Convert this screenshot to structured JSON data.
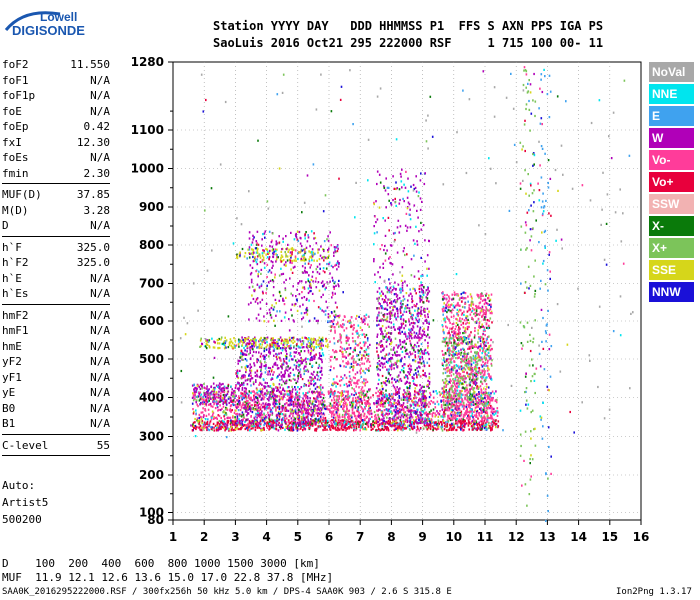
{
  "logo": {
    "line1": "Lowell",
    "line2": "DIGISONDE"
  },
  "header": {
    "line1": "Station YYYY DAY   DDD HHMMSS P1  FFS S AXN PPS IGA PS",
    "line2": "SaoLuis 2016 Oct21 295 222000 RSF     1 715 100 00- 11"
  },
  "params_groups": [
    [
      {
        "label": "foF2",
        "value": "11.550"
      },
      {
        "label": "foF1",
        "value": "N/A"
      },
      {
        "label": "foF1p",
        "value": "N/A"
      },
      {
        "label": "foE",
        "value": "N/A"
      },
      {
        "label": "foEp",
        "value": "0.42"
      },
      {
        "label": "fxI",
        "value": "12.30"
      },
      {
        "label": "foEs",
        "value": "N/A"
      },
      {
        "label": "fmin",
        "value": "2.30"
      }
    ],
    [
      {
        "label": "MUF(D)",
        "value": "37.85"
      },
      {
        "label": "M(D)",
        "value": "3.28"
      },
      {
        "label": "D",
        "value": "N/A"
      }
    ],
    [
      {
        "label": "h`F",
        "value": "325.0"
      },
      {
        "label": "h`F2",
        "value": "325.0"
      },
      {
        "label": "h`E",
        "value": "N/A"
      },
      {
        "label": "h`Es",
        "value": "N/A"
      }
    ],
    [
      {
        "label": "hmF2",
        "value": "N/A"
      },
      {
        "label": "hmF1",
        "value": "N/A"
      },
      {
        "label": "hmE",
        "value": "N/A"
      },
      {
        "label": "yF2",
        "value": "N/A"
      },
      {
        "label": "yF1",
        "value": "N/A"
      },
      {
        "label": "yE",
        "value": "N/A"
      },
      {
        "label": "B0",
        "value": "N/A"
      },
      {
        "label": "B1",
        "value": "N/A"
      }
    ],
    [
      {
        "label": "C-level",
        "value": "55"
      }
    ]
  ],
  "autoscaling": {
    "line1": "Auto:",
    "line2": "Artist5",
    "line3": "500200"
  },
  "legend": [
    {
      "label": "NoVal",
      "color": "#a8a8a8"
    },
    {
      "label": "NNE",
      "color": "#00e5ee"
    },
    {
      "label": "E",
      "color": "#3fa2ef"
    },
    {
      "label": "W",
      "color": "#b000b8"
    },
    {
      "label": "Vo-",
      "color": "#ff3c9a"
    },
    {
      "label": "Vo+",
      "color": "#e8003c"
    },
    {
      "label": "SSW",
      "color": "#f2b2b2"
    },
    {
      "label": "X-",
      "color": "#0a7a0a"
    },
    {
      "label": "X+",
      "color": "#7cc45a"
    },
    {
      "label": "SSE",
      "color": "#d6d61a"
    },
    {
      "label": "NNW",
      "color": "#1a10d8"
    }
  ],
  "footer": {
    "d_row": "D    100  200  400  600  800 1000 1500 3000 [km]",
    "muf_row": "MUF  11.9 12.1 12.6 13.6 15.0 17.0 22.8 37.8 [MHz]",
    "file_info": "SAA0K_2016295222000.RSF / 300fx256h 50 kHz 5.0 km / DPS-4 SAA0K 903 / 2.6 S 315.8 E",
    "version": "Ion2Png 1.3.17"
  },
  "chart_data": {
    "type": "scatter",
    "title": "",
    "xlabel": "",
    "ylabel": "",
    "x_ticks": [
      "1",
      "2",
      "3",
      "4",
      "5",
      "6",
      "7",
      "8",
      "9",
      "10",
      "11",
      "12",
      "13",
      "14",
      "15",
      "16"
    ],
    "y_ticks": [
      "80",
      "100",
      "200",
      "300",
      "400",
      "500",
      "600",
      "700",
      "800",
      "900",
      "1000",
      "1100",
      "1280"
    ],
    "xlim": [
      1,
      16
    ],
    "ylim": [
      80,
      1280
    ],
    "y_scale": "nonlinear (ionogram virtual height)",
    "grid": true,
    "legend_position": "right",
    "color_by": "legend",
    "regions": [
      {
        "name": "F-trace base",
        "x": [
          1.6,
          11.4
        ],
        "y": [
          318,
          345
        ],
        "color_index": 5,
        "density": 1.0
      },
      {
        "name": "F-trace upper",
        "x": [
          1.6,
          11.4
        ],
        "y": [
          345,
          420
        ],
        "color_index": 4,
        "density": 0.45
      },
      {
        "name": "W cluster 1",
        "x": [
          1.6,
          3.0
        ],
        "y": [
          385,
          440
        ],
        "color_index": 3,
        "density": 0.6
      },
      {
        "name": "spread F 3-5",
        "x": [
          3.0,
          5.8
        ],
        "y": [
          330,
          560
        ],
        "color_index": 3,
        "density": 0.4
      },
      {
        "name": "SSE band 540",
        "x": [
          1.8,
          6.0
        ],
        "y": [
          530,
          560
        ],
        "color_index": 9,
        "density": 0.45
      },
      {
        "name": "SSE band 780",
        "x": [
          3.0,
          6.0
        ],
        "y": [
          760,
          795
        ],
        "color_index": 9,
        "density": 0.4
      },
      {
        "name": "spread F 6-7",
        "x": [
          6.0,
          7.3
        ],
        "y": [
          330,
          620
        ],
        "color_index": 4,
        "density": 0.3
      },
      {
        "name": "spread F 7.5-9",
        "x": [
          7.5,
          9.2
        ],
        "y": [
          330,
          700
        ],
        "color_index": 3,
        "density": 0.4
      },
      {
        "name": "spread F 9.5-11",
        "x": [
          9.6,
          11.2
        ],
        "y": [
          340,
          680
        ],
        "color_index": 4,
        "density": 0.5
      },
      {
        "name": "X+ patch",
        "x": [
          9.6,
          11.0
        ],
        "y": [
          380,
          560
        ],
        "color_index": 8,
        "density": 0.25
      },
      {
        "name": "upper scatter 3.5-6",
        "x": [
          3.4,
          6.3
        ],
        "y": [
          600,
          840
        ],
        "color_index": 3,
        "density": 0.15
      },
      {
        "name": "upper scatter 7.5-9",
        "x": [
          7.4,
          9.2
        ],
        "y": [
          700,
          1000
        ],
        "color_index": 3,
        "density": 0.08
      },
      {
        "name": "vertical echo 12.3",
        "x": [
          12.1,
          12.6
        ],
        "y": [
          120,
          1270
        ],
        "color_index": 8,
        "density": 0.06
      },
      {
        "name": "vertical echo 12.8",
        "x": [
          12.7,
          13.1
        ],
        "y": [
          80,
          1270
        ],
        "color_index": 2,
        "density": 0.05
      },
      {
        "name": "noise",
        "x": [
          1.2,
          15.9
        ],
        "y": [
          300,
          1270
        ],
        "color_index": 0,
        "density": 0.004
      }
    ]
  }
}
